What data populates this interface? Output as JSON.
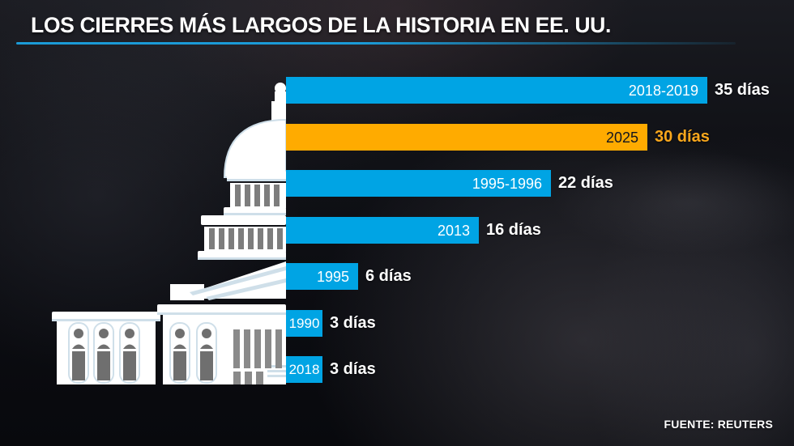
{
  "title": "LOS CIERRES MÁS LARGOS DE LA HISTORIA EN EE. UU.",
  "source": "FUENTE: REUTERS",
  "colors": {
    "bar_blue": "#00A4E4",
    "bar_highlight": "#FFAB00",
    "value_text": "#FFFFFF",
    "value_text_highlight": "#F9A71C",
    "year_text_on_blue": "#FFFFFF",
    "year_text_on_highlight": "#111520",
    "title_underline": "#1B9BD7",
    "capitol_white": "#FFFFFF",
    "capitol_shadow_blue": "#CFDFE9",
    "capitol_gray": "#6F6F6F"
  },
  "icons": {
    "illustration": "us-capitol-building-illustration"
  },
  "chart_data": {
    "type": "bar",
    "orientation": "horizontal",
    "title": "LOS CIERRES MÁS LARGOS DE LA HISTORIA EN EE. UU.",
    "source": "FUENTE: REUTERS",
    "unit": "días",
    "categories": [
      "2018-2019",
      "2025",
      "1995-1996",
      "2013",
      "1995",
      "1990",
      "2018"
    ],
    "values": [
      35,
      30,
      22,
      16,
      6,
      3,
      3
    ],
    "labels": [
      "35 días",
      "30 días",
      "22 días",
      "16 días",
      "6 días",
      "3 días",
      "3 días"
    ],
    "highlight_index": 1,
    "xlim": [
      0,
      42
    ],
    "grid": false,
    "legend": false
  }
}
